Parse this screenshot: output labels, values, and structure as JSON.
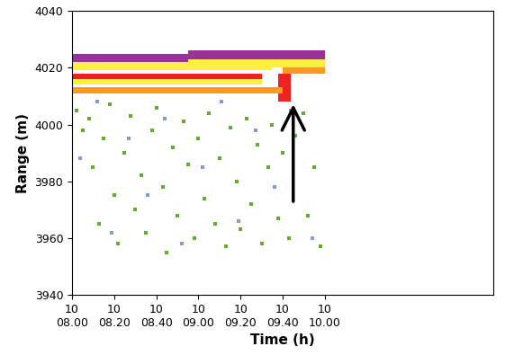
{
  "chart_data": {
    "type": "range_time",
    "xlabel": "Time (h)",
    "ylabel": "Range (m)",
    "xlim": [
      8.0,
      10.0
    ],
    "xticks": [
      {
        "value": 8.0,
        "label": "10\n08.00"
      },
      {
        "value": 8.2,
        "label": "10\n08.20"
      },
      {
        "value": 8.4,
        "label": "10\n08.40"
      },
      {
        "value": 8.6,
        "label": "10\n09.00"
      },
      {
        "value": 8.8,
        "label": "10\n09.20"
      },
      {
        "value": 9.0,
        "label": "10\n09.40"
      },
      {
        "value": 9.2,
        "label": "10\n10.00"
      }
    ],
    "ylim": [
      3940,
      4040
    ],
    "yticks": [
      3940,
      3960,
      3980,
      4000,
      4020,
      4040
    ],
    "series": [
      {
        "type": "band",
        "color": "#993399",
        "values": [
          [
            8.0,
            9.0,
            4022,
            4025
          ],
          [
            8.55,
            9.2,
            4023,
            4026
          ]
        ]
      },
      {
        "type": "band",
        "color": "#ffee44",
        "values": [
          [
            8.0,
            8.95,
            4019,
            4022
          ],
          [
            8.0,
            8.9,
            4014,
            4016
          ],
          [
            8.55,
            9.2,
            4020,
            4023
          ]
        ]
      },
      {
        "type": "band",
        "color": "#ee2222",
        "values": [
          [
            8.0,
            8.9,
            4016,
            4018
          ],
          [
            8.98,
            9.04,
            4008,
            4018
          ]
        ]
      },
      {
        "type": "band",
        "color": "#ff9922",
        "values": [
          [
            8.0,
            9.0,
            4011,
            4013
          ],
          [
            9.0,
            9.2,
            4018,
            4020
          ]
        ]
      },
      {
        "type": "scatter",
        "color": "#66aa33",
        "x": [
          8.02,
          8.05,
          8.08,
          8.1,
          8.13,
          8.15,
          8.18,
          8.2,
          8.22,
          8.25,
          8.28,
          8.3,
          8.33,
          8.35,
          8.38,
          8.4,
          8.43,
          8.45,
          8.48,
          8.5,
          8.53,
          8.55,
          8.58,
          8.6,
          8.63,
          8.65,
          8.68,
          8.7,
          8.73,
          8.75,
          8.78,
          8.8,
          8.83,
          8.85,
          8.88,
          8.9,
          8.93,
          8.95,
          8.98,
          9.0,
          9.03,
          9.06,
          9.1,
          9.12,
          9.15,
          9.18
        ],
        "y": [
          4005,
          3998,
          4002,
          3985,
          3965,
          3995,
          4007,
          3975,
          3958,
          3990,
          4003,
          3970,
          3982,
          3962,
          3998,
          4006,
          3978,
          3955,
          3992,
          3968,
          4001,
          3986,
          3960,
          3995,
          3974,
          4004,
          3965,
          3988,
          3957,
          3999,
          3980,
          3963,
          4002,
          3972,
          3993,
          3958,
          3985,
          4000,
          3967,
          3990,
          3960,
          3996,
          4004,
          3968,
          3985,
          3957
        ]
      },
      {
        "type": "scatter",
        "color": "#8899cc",
        "x": [
          8.04,
          8.12,
          8.19,
          8.27,
          8.36,
          8.44,
          8.52,
          8.62,
          8.71,
          8.79,
          8.87,
          8.96,
          9.04,
          9.14
        ],
        "y": [
          3988,
          4008,
          3962,
          3995,
          3975,
          4002,
          3958,
          3985,
          4008,
          3966,
          3998,
          3978,
          4005,
          3960
        ]
      }
    ]
  }
}
